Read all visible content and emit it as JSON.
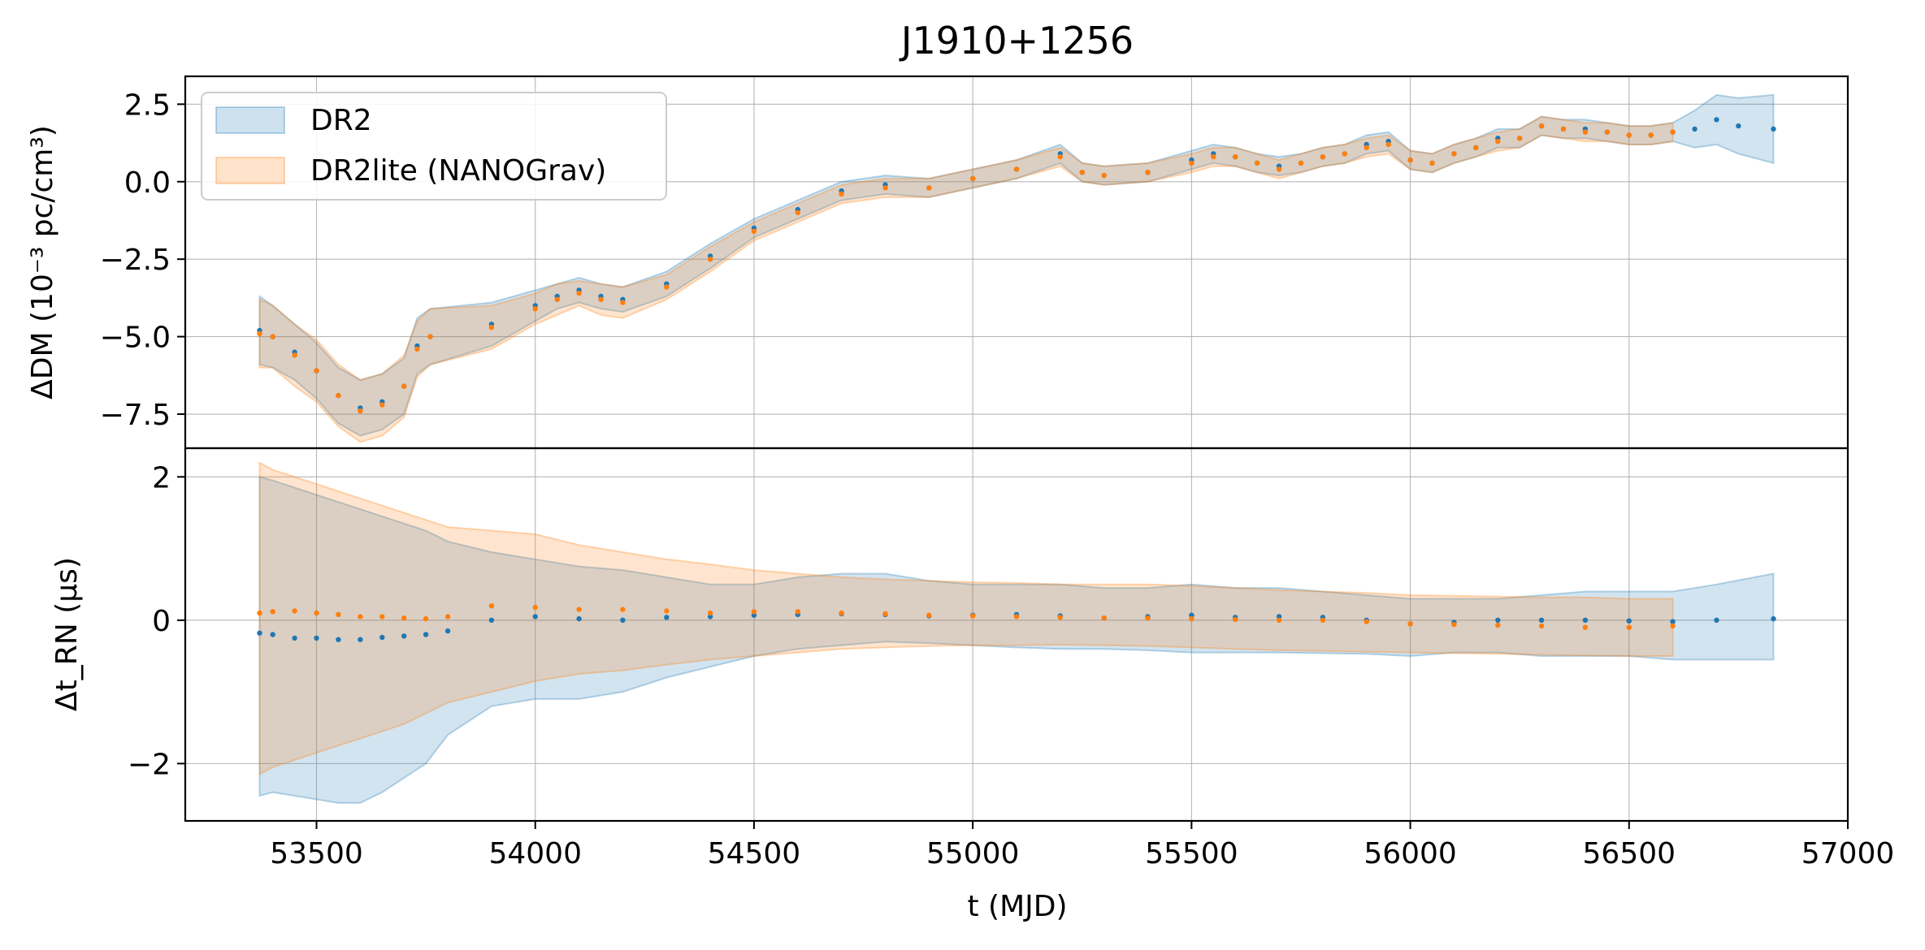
{
  "chart_data": {
    "type": "line",
    "title": "J1910+1256",
    "x_axis": {
      "label": "t (MJD)",
      "range": [
        53200,
        57000
      ],
      "ticks": [
        53500,
        54000,
        54500,
        55000,
        55500,
        56000,
        56500,
        57000
      ]
    },
    "legend": {
      "placement": "top-left",
      "entries": [
        "DR2",
        "DR2lite (NANOGrav)"
      ]
    },
    "colors": {
      "DR2": "#1f77b4",
      "DR2lite": "#ff7f0e"
    },
    "grid": true,
    "panels": [
      {
        "ylabel": "ΔDM (10⁻³ pc/cm³)",
        "ylim": [
          -8.6,
          3.4
        ],
        "yticks": [
          2.5,
          0.0,
          -2.5,
          -5.0,
          -7.5
        ],
        "ytick_labels": [
          "2.5",
          "0.0",
          "−2.5",
          "−5.0",
          "−7.5"
        ],
        "series": [
          {
            "name": "DR2",
            "x": [
              53370,
              53400,
              53450,
              53500,
              53550,
              53600,
              53650,
              53700,
              53730,
              53760,
              53900,
              54000,
              54050,
              54100,
              54150,
              54200,
              54300,
              54400,
              54500,
              54600,
              54700,
              54800,
              54900,
              55000,
              55100,
              55200,
              55250,
              55300,
              55400,
              55500,
              55550,
              55600,
              55650,
              55700,
              55750,
              55800,
              55850,
              55900,
              55950,
              56000,
              56050,
              56100,
              56150,
              56200,
              56250,
              56300,
              56350,
              56400,
              56450,
              56500,
              56550,
              56600,
              56650,
              56700,
              56750,
              56830
            ],
            "y": [
              -4.8,
              -5.0,
              -5.5,
              -6.1,
              -6.9,
              -7.3,
              -7.1,
              -6.6,
              -5.3,
              -5.0,
              -4.6,
              -4.0,
              -3.7,
              -3.5,
              -3.7,
              -3.8,
              -3.3,
              -2.4,
              -1.5,
              -0.9,
              -0.3,
              -0.1,
              -0.2,
              0.1,
              0.4,
              0.9,
              0.3,
              0.2,
              0.3,
              0.7,
              0.9,
              0.8,
              0.6,
              0.5,
              0.6,
              0.8,
              0.9,
              1.2,
              1.3,
              0.7,
              0.6,
              0.9,
              1.1,
              1.4,
              1.4,
              1.8,
              1.7,
              1.7,
              1.6,
              1.5,
              1.5,
              1.6,
              1.7,
              2.0,
              1.8,
              1.7
            ],
            "err": [
              1.1,
              1.0,
              0.9,
              0.9,
              0.9,
              0.9,
              0.9,
              0.9,
              0.9,
              0.9,
              0.7,
              0.5,
              0.4,
              0.4,
              0.4,
              0.4,
              0.4,
              0.4,
              0.3,
              0.3,
              0.3,
              0.3,
              0.3,
              0.3,
              0.3,
              0.3,
              0.3,
              0.3,
              0.3,
              0.3,
              0.3,
              0.3,
              0.3,
              0.3,
              0.3,
              0.3,
              0.3,
              0.3,
              0.3,
              0.3,
              0.3,
              0.3,
              0.3,
              0.3,
              0.3,
              0.3,
              0.3,
              0.3,
              0.3,
              0.3,
              0.3,
              0.3,
              0.6,
              0.8,
              0.9,
              1.1
            ]
          },
          {
            "name": "DR2lite (NANOGrav)",
            "x": [
              53370,
              53400,
              53450,
              53500,
              53550,
              53600,
              53650,
              53700,
              53730,
              53760,
              53900,
              54000,
              54050,
              54100,
              54150,
              54200,
              54300,
              54400,
              54500,
              54600,
              54700,
              54800,
              54900,
              55000,
              55100,
              55200,
              55250,
              55300,
              55400,
              55500,
              55550,
              55600,
              55650,
              55700,
              55750,
              55800,
              55850,
              55900,
              55950,
              56000,
              56050,
              56100,
              56150,
              56200,
              56250,
              56300,
              56350,
              56400,
              56450,
              56500,
              56550,
              56600
            ],
            "y": [
              -4.9,
              -5.0,
              -5.6,
              -6.1,
              -6.9,
              -7.4,
              -7.2,
              -6.6,
              -5.4,
              -5.0,
              -4.7,
              -4.1,
              -3.8,
              -3.6,
              -3.8,
              -3.9,
              -3.4,
              -2.5,
              -1.6,
              -1.0,
              -0.4,
              -0.2,
              -0.2,
              0.1,
              0.4,
              0.8,
              0.3,
              0.2,
              0.3,
              0.6,
              0.8,
              0.8,
              0.6,
              0.4,
              0.6,
              0.8,
              0.9,
              1.1,
              1.2,
              0.7,
              0.6,
              0.9,
              1.1,
              1.3,
              1.4,
              1.8,
              1.7,
              1.6,
              1.6,
              1.5,
              1.5,
              1.6
            ],
            "err": [
              1.1,
              1.0,
              1.0,
              1.0,
              1.0,
              1.0,
              1.0,
              1.0,
              0.9,
              0.9,
              0.7,
              0.5,
              0.5,
              0.4,
              0.5,
              0.5,
              0.4,
              0.4,
              0.3,
              0.3,
              0.3,
              0.3,
              0.3,
              0.3,
              0.3,
              0.3,
              0.3,
              0.3,
              0.3,
              0.3,
              0.3,
              0.3,
              0.3,
              0.3,
              0.3,
              0.3,
              0.3,
              0.3,
              0.3,
              0.3,
              0.3,
              0.3,
              0.3,
              0.3,
              0.3,
              0.3,
              0.3,
              0.3,
              0.3,
              0.3,
              0.3,
              0.3
            ]
          }
        ]
      },
      {
        "ylabel": "Δt_RN (μs)",
        "ylim": [
          -2.8,
          2.4
        ],
        "yticks": [
          2,
          0,
          -2
        ],
        "ytick_labels": [
          "2",
          "0",
          "−2"
        ],
        "series": [
          {
            "name": "DR2",
            "x": [
              53370,
              53400,
              53450,
              53500,
              53550,
              53600,
              53650,
              53700,
              53750,
              53800,
              53900,
              54000,
              54100,
              54200,
              54300,
              54400,
              54500,
              54600,
              54700,
              54800,
              54900,
              55000,
              55100,
              55200,
              55300,
              55400,
              55500,
              55600,
              55700,
              55800,
              55900,
              56000,
              56100,
              56200,
              56300,
              56400,
              56500,
              56600,
              56700,
              56830
            ],
            "y": [
              -0.18,
              -0.2,
              -0.25,
              -0.25,
              -0.27,
              -0.27,
              -0.24,
              -0.22,
              -0.2,
              -0.15,
              0.0,
              0.05,
              0.02,
              0.0,
              0.04,
              0.05,
              0.07,
              0.08,
              0.09,
              0.08,
              0.06,
              0.07,
              0.08,
              0.06,
              0.03,
              0.05,
              0.07,
              0.04,
              0.05,
              0.04,
              0.0,
              -0.05,
              -0.03,
              0.0,
              0.0,
              0.0,
              -0.01,
              -0.02,
              0.0,
              0.02
            ],
            "lower": [
              -2.45,
              -2.4,
              -2.45,
              -2.5,
              -2.55,
              -2.55,
              -2.4,
              -2.2,
              -2.0,
              -1.6,
              -1.2,
              -1.1,
              -1.1,
              -1.0,
              -0.8,
              -0.65,
              -0.5,
              -0.4,
              -0.35,
              -0.3,
              -0.32,
              -0.35,
              -0.38,
              -0.4,
              -0.4,
              -0.42,
              -0.45,
              -0.45,
              -0.45,
              -0.46,
              -0.47,
              -0.5,
              -0.45,
              -0.45,
              -0.5,
              -0.5,
              -0.5,
              -0.55,
              -0.55,
              -0.55
            ],
            "upper": [
              2.0,
              1.95,
              1.85,
              1.75,
              1.65,
              1.55,
              1.45,
              1.35,
              1.25,
              1.1,
              0.95,
              0.85,
              0.75,
              0.7,
              0.6,
              0.5,
              0.5,
              0.6,
              0.65,
              0.65,
              0.55,
              0.5,
              0.5,
              0.5,
              0.45,
              0.45,
              0.5,
              0.45,
              0.45,
              0.4,
              0.35,
              0.3,
              0.3,
              0.3,
              0.35,
              0.4,
              0.4,
              0.4,
              0.5,
              0.65
            ]
          },
          {
            "name": "DR2lite (NANOGrav)",
            "x": [
              53370,
              53400,
              53450,
              53500,
              53550,
              53600,
              53650,
              53700,
              53750,
              53800,
              53900,
              54000,
              54100,
              54200,
              54300,
              54400,
              54500,
              54600,
              54700,
              54800,
              54900,
              55000,
              55100,
              55200,
              55300,
              55400,
              55500,
              55600,
              55700,
              55800,
              55900,
              56000,
              56100,
              56200,
              56300,
              56400,
              56500,
              56600
            ],
            "y": [
              0.1,
              0.12,
              0.13,
              0.1,
              0.08,
              0.05,
              0.05,
              0.03,
              0.02,
              0.05,
              0.2,
              0.18,
              0.15,
              0.15,
              0.13,
              0.1,
              0.12,
              0.12,
              0.1,
              0.09,
              0.07,
              0.06,
              0.05,
              0.04,
              0.03,
              0.03,
              0.02,
              0.01,
              0.0,
              0.0,
              -0.02,
              -0.05,
              -0.06,
              -0.07,
              -0.08,
              -0.1,
              -0.1,
              -0.08
            ],
            "lower": [
              -2.15,
              -2.05,
              -1.95,
              -1.85,
              -1.75,
              -1.65,
              -1.55,
              -1.45,
              -1.3,
              -1.15,
              -1.0,
              -0.85,
              -0.75,
              -0.7,
              -0.62,
              -0.55,
              -0.5,
              -0.45,
              -0.4,
              -0.38,
              -0.36,
              -0.35,
              -0.35,
              -0.34,
              -0.35,
              -0.36,
              -0.38,
              -0.4,
              -0.42,
              -0.43,
              -0.44,
              -0.45,
              -0.46,
              -0.47,
              -0.48,
              -0.49,
              -0.5,
              -0.5
            ],
            "upper": [
              2.2,
              2.1,
              2.0,
              1.9,
              1.8,
              1.7,
              1.6,
              1.5,
              1.4,
              1.3,
              1.25,
              1.2,
              1.05,
              0.95,
              0.85,
              0.78,
              0.7,
              0.65,
              0.6,
              0.57,
              0.55,
              0.53,
              0.52,
              0.5,
              0.5,
              0.5,
              0.48,
              0.45,
              0.42,
              0.4,
              0.38,
              0.35,
              0.34,
              0.33,
              0.32,
              0.32,
              0.3,
              0.3
            ]
          }
        ]
      }
    ]
  }
}
